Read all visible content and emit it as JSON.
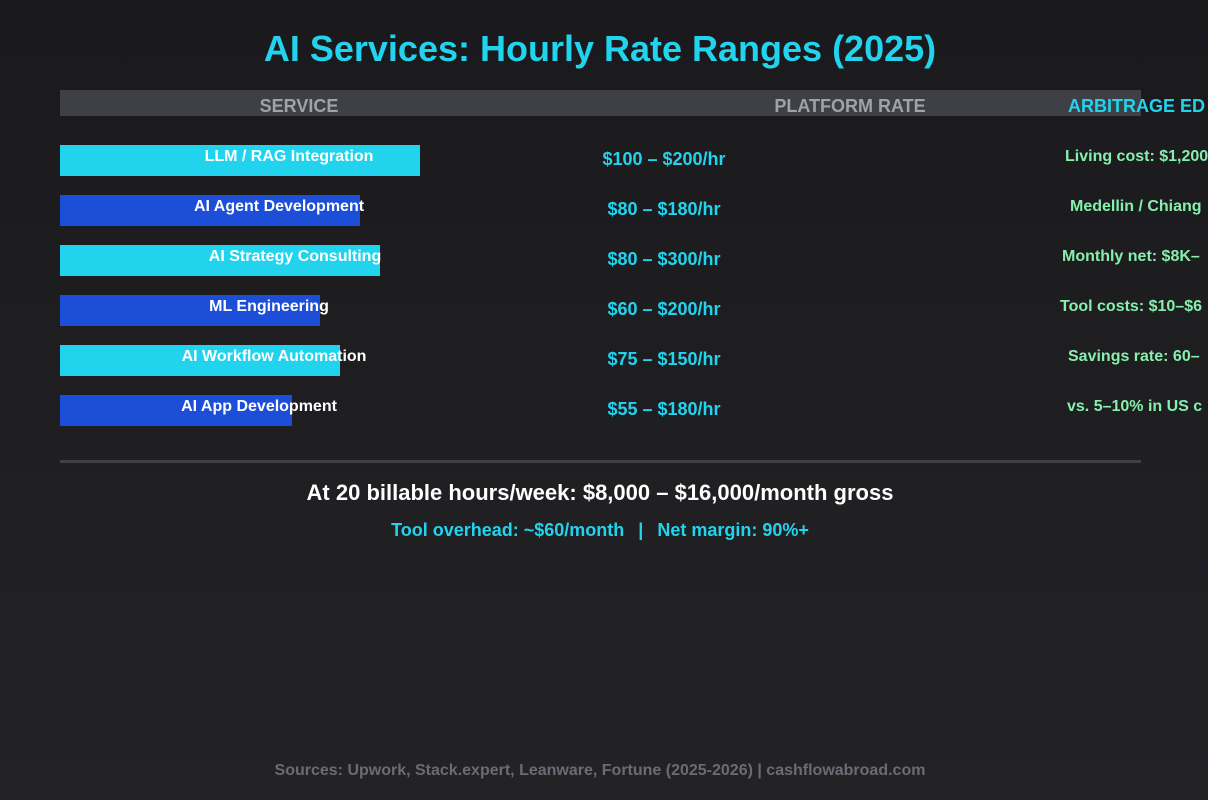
{
  "title": "AI Services: Hourly Rate Ranges (2025)",
  "headers": {
    "service": "SERVICE",
    "rate": "PLATFORM RATE",
    "arbitrage": "ARBITRAGE ED"
  },
  "colors": {
    "accent": "#22d3ee",
    "bar_alt": "#1d4ed8",
    "arbitrage_text": "#86efac",
    "header_band": "#3f3f46"
  },
  "rows": [
    {
      "service": "LLM / RAG Integration",
      "rate": "$100 – $200/hr",
      "arbitrage": "Living cost: $1,200",
      "bar_level_pct": 90,
      "bar_color": "#22d3ee"
    },
    {
      "service": "AI Agent Development",
      "rate": "$80 – $180/hr",
      "arbitrage": "Medellin / Chiang",
      "bar_level_pct": 75,
      "bar_color": "#1d4ed8"
    },
    {
      "service": "AI Strategy Consulting",
      "rate": "$80 – $300/hr",
      "arbitrage": "Monthly net: $8K–",
      "bar_level_pct": 80,
      "bar_color": "#22d3ee"
    },
    {
      "service": "ML Engineering",
      "rate": "$60 – $200/hr",
      "arbitrage": "Tool costs: $10–$6",
      "bar_level_pct": 65,
      "bar_color": "#1d4ed8"
    },
    {
      "service": "AI Workflow Automation",
      "rate": "$75 – $150/hr",
      "arbitrage": "Savings rate: 60–",
      "bar_level_pct": 70,
      "bar_color": "#22d3ee"
    },
    {
      "service": "AI App Development",
      "rate": "$55 – $180/hr",
      "arbitrage": "vs. 5–10% in US c",
      "bar_level_pct": 58,
      "bar_color": "#1d4ed8"
    }
  ],
  "summary": "At 20 billable hours/week: $8,000 – $16,000/month gross",
  "sub": {
    "overhead": "Tool overhead: ~$60/month",
    "separator": "|",
    "margin": "Net margin: 90%+"
  },
  "footer": "Sources: Upwork, Stack.expert, Leanware, Fortune (2025-2026) | cashflowabroad.com"
}
